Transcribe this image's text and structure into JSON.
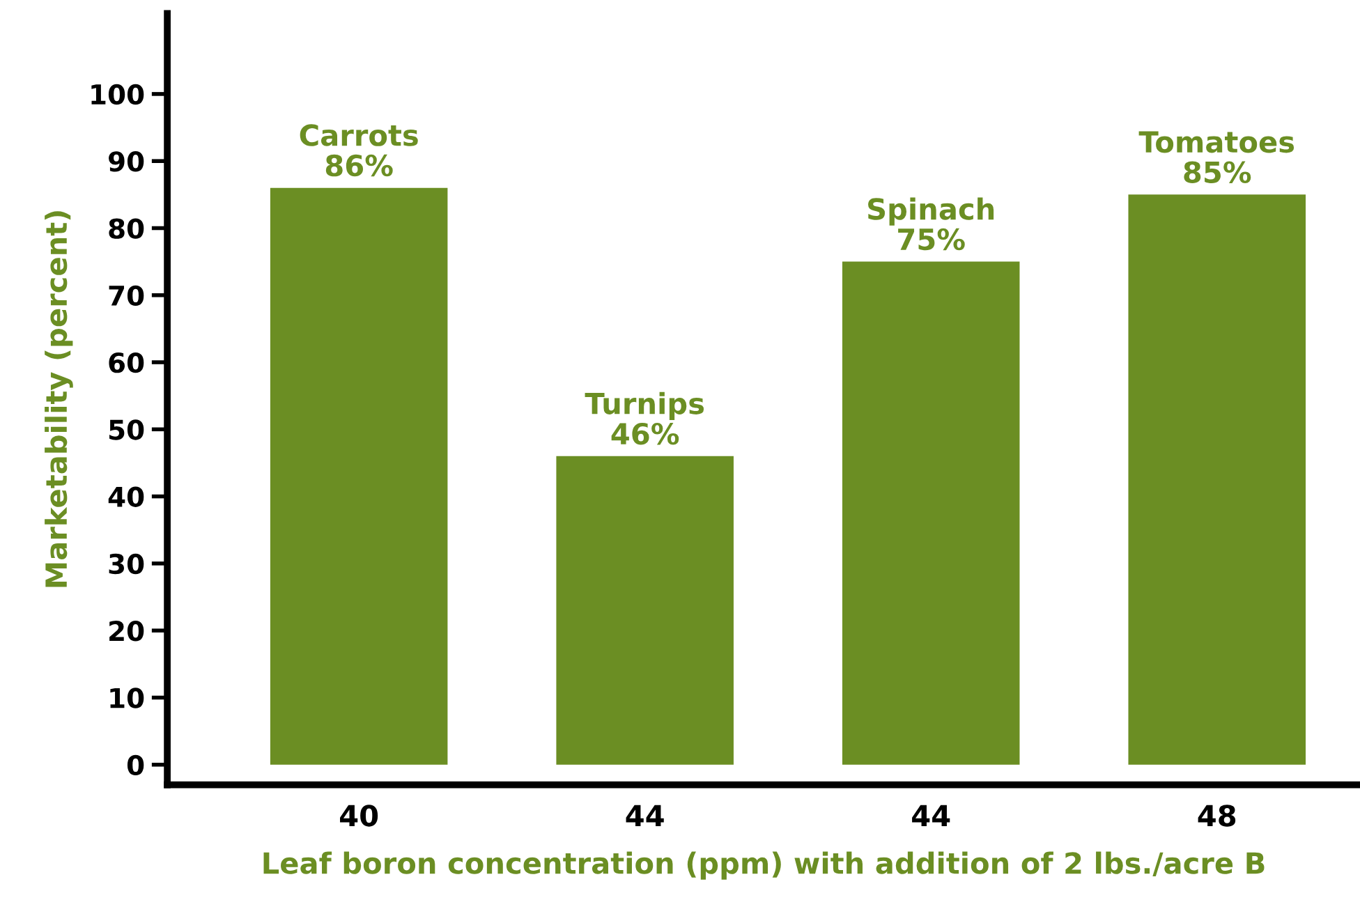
{
  "chart_data": {
    "type": "bar",
    "xlabel": "Leaf boron concentration (ppm) with addition of 2 lbs./acre B",
    "ylabel": "Marketability (percent)",
    "categories": [
      "40",
      "44",
      "44",
      "48"
    ],
    "values": [
      86,
      46,
      75,
      85
    ],
    "value_labels": [
      "Carrots\n86%",
      "Turnips\n46%",
      "Spinach\n75%",
      "Tomatoes\n85%"
    ],
    "color": "#6b8e23",
    "ylim": [
      -3,
      112
    ],
    "yticks": [
      0,
      10,
      20,
      30,
      40,
      50,
      60,
      70,
      80,
      90,
      100
    ],
    "grid": false,
    "legend": false
  }
}
